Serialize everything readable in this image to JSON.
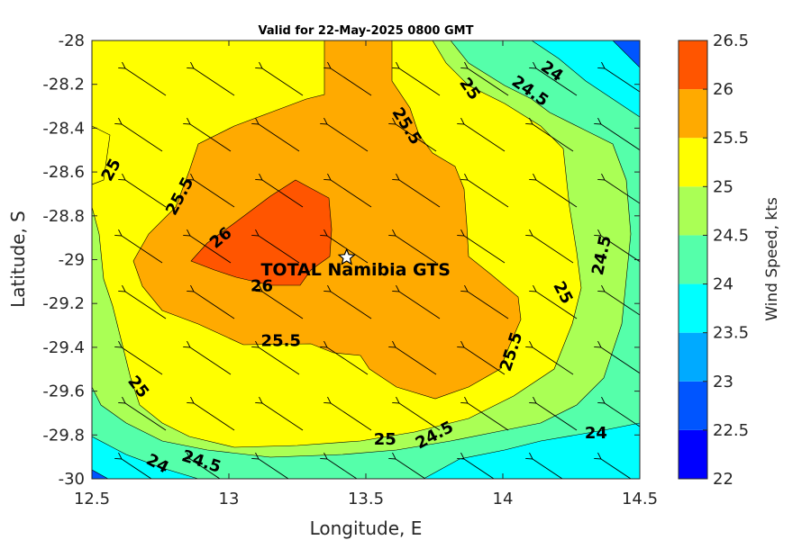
{
  "chart_data": {
    "type": "contour",
    "title": "Valid for 22-May-2025 0800 GMT",
    "xlabel": "Longitude, E",
    "ylabel": "Latitude, S",
    "colorbar_label": "Wind Speed, kts",
    "xlim": [
      12.5,
      14.5
    ],
    "ylim": [
      -30,
      -28
    ],
    "x_ticks": [
      12.5,
      13,
      13.5,
      14,
      14.5
    ],
    "x_tick_labels": [
      "12.5",
      "13",
      "13.5",
      "14",
      "14.5"
    ],
    "y_ticks": [
      -28,
      -28.2,
      -28.4,
      -28.6,
      -28.8,
      -29,
      -29.2,
      -29.4,
      -29.6,
      -29.8,
      -30
    ],
    "y_tick_labels": [
      "-28",
      "-28.2",
      "-28.4",
      "-28.6",
      "-28.8",
      "-29",
      "-29.2",
      "-29.4",
      "-29.6",
      "-29.8",
      "-30"
    ],
    "levels": [
      22,
      22.5,
      23,
      23.5,
      24,
      24.5,
      25,
      25.5,
      26,
      26.5
    ],
    "level_labels": [
      "22",
      "22.5",
      "23",
      "23.5",
      "24",
      "24.5",
      "25",
      "25.5",
      "26",
      "26.5"
    ],
    "level_colors": [
      "#0000ff",
      "#0055ff",
      "#00aaff",
      "#00ffff",
      "#55ffaa",
      "#aaff55",
      "#ffff00",
      "#ffaa00",
      "#ff5500"
    ],
    "site": {
      "name": "TOTAL Namibia GTS",
      "lon": 13.43,
      "lat": -28.99
    },
    "wind_direction": "from the east-southeast (arrows point toward west-northwest)",
    "contour_labels": [
      {
        "text": "26",
        "lon": 12.97,
        "lat": -28.9,
        "angle": -40
      },
      {
        "text": "26",
        "lon": 13.12,
        "lat": -29.12,
        "angle": 0
      },
      {
        "text": "25.5",
        "lon": 12.82,
        "lat": -28.71,
        "angle": -62
      },
      {
        "text": "25.5",
        "lon": 13.65,
        "lat": -28.39,
        "angle": 58
      },
      {
        "text": "25.5",
        "lon": 13.19,
        "lat": -29.37,
        "angle": 0
      },
      {
        "text": "25.5",
        "lon": 14.03,
        "lat": -29.42,
        "angle": -72
      },
      {
        "text": "25",
        "lon": 12.57,
        "lat": -28.59,
        "angle": -62
      },
      {
        "text": "25",
        "lon": 13.88,
        "lat": -28.22,
        "angle": 55
      },
      {
        "text": "25",
        "lon": 14.22,
        "lat": -29.15,
        "angle": 62
      },
      {
        "text": "25",
        "lon": 12.67,
        "lat": -29.58,
        "angle": 52
      },
      {
        "text": "25",
        "lon": 13.57,
        "lat": -29.82,
        "angle": 0
      },
      {
        "text": "24.5",
        "lon": 14.36,
        "lat": -28.98,
        "angle": -78
      },
      {
        "text": "24.5",
        "lon": 14.1,
        "lat": -28.23,
        "angle": 35
      },
      {
        "text": "24.5",
        "lon": 13.75,
        "lat": -29.8,
        "angle": -28
      },
      {
        "text": "24.5",
        "lon": 12.9,
        "lat": -29.92,
        "angle": 18
      },
      {
        "text": "24",
        "lon": 14.18,
        "lat": -28.14,
        "angle": 35
      },
      {
        "text": "24",
        "lon": 14.34,
        "lat": -29.79,
        "angle": 0
      },
      {
        "text": "24",
        "lon": 12.74,
        "lat": -29.93,
        "angle": 28
      }
    ]
  }
}
